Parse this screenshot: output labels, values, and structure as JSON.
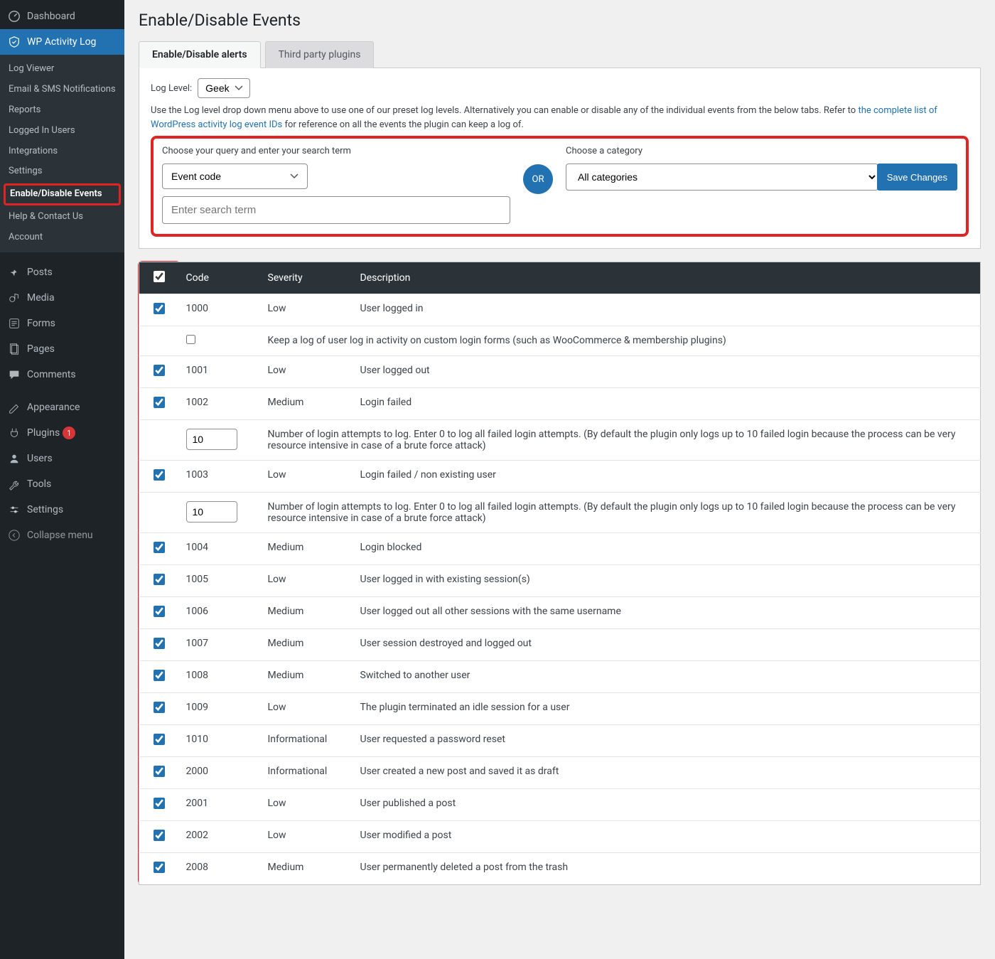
{
  "sidebar": {
    "dashboard": "Dashboard",
    "plugin": "WP Activity Log",
    "sub": {
      "log_viewer": "Log Viewer",
      "email_sms": "Email & SMS Notifications",
      "reports": "Reports",
      "logged_in": "Logged In Users",
      "integrations": "Integrations",
      "settings": "Settings",
      "enable_disable": "Enable/Disable Events",
      "help": "Help & Contact Us",
      "account": "Account"
    },
    "posts": "Posts",
    "media": "Media",
    "forms": "Forms",
    "pages": "Pages",
    "comments": "Comments",
    "appearance": "Appearance",
    "plugins": "Plugins",
    "plugins_badge": "1",
    "users": "Users",
    "tools": "Tools",
    "wp_settings": "Settings",
    "collapse": "Collapse menu"
  },
  "page": {
    "title": "Enable/Disable Events",
    "tabs": {
      "alerts": "Enable/Disable alerts",
      "third_party": "Third party plugins"
    },
    "loglevel_label": "Log Level:",
    "loglevel_value": "Geek",
    "hint_pre": "Use the Log level drop down menu above to use one of our preset log levels. Alternatively you can enable or disable any of the individual events from the below tabs. Refer to ",
    "hint_link": "the complete list of WordPress activity log event IDs",
    "hint_post": " for reference on all the events the plugin can keep a log of.",
    "query_label": "Choose your query and enter your search term",
    "query_select": "Event code",
    "search_placeholder": "Enter search term",
    "or": "OR",
    "cat_label": "Choose a category",
    "cat_value": "All categories",
    "save": "Save Changes"
  },
  "table": {
    "cols": {
      "code": "Code",
      "severity": "Severity",
      "description": "Description"
    },
    "rows": [
      {
        "checked": true,
        "code": "1000",
        "severity": "Low",
        "desc": "User logged in"
      },
      {
        "checked": false,
        "indent": true,
        "code": "",
        "severity": "",
        "desc": "Keep a log of user log in activity on custom login forms (such as WooCommerce & membership plugins)"
      },
      {
        "checked": true,
        "code": "1001",
        "severity": "Low",
        "desc": "User logged out"
      },
      {
        "checked": true,
        "code": "1002",
        "severity": "Medium",
        "desc": "Login failed"
      },
      {
        "num": "10",
        "desc": "Number of login attempts to log. Enter 0 to log all failed login attempts. (By default the plugin only logs up to 10 failed login because the process can be very resource intensive in case of a brute force attack)"
      },
      {
        "checked": true,
        "code": "1003",
        "severity": "Low",
        "desc": "Login failed / non existing user"
      },
      {
        "num": "10",
        "desc": "Number of login attempts to log. Enter 0 to log all failed login attempts. (By default the plugin only logs up to 10 failed login because the process can be very resource intensive in case of a brute force attack)"
      },
      {
        "checked": true,
        "code": "1004",
        "severity": "Medium",
        "desc": "Login blocked"
      },
      {
        "checked": true,
        "code": "1005",
        "severity": "Low",
        "desc": "User logged in with existing session(s)"
      },
      {
        "checked": true,
        "code": "1006",
        "severity": "Medium",
        "desc": "User logged out all other sessions with the same username"
      },
      {
        "checked": true,
        "code": "1007",
        "severity": "Medium",
        "desc": "User session destroyed and logged out"
      },
      {
        "checked": true,
        "code": "1008",
        "severity": "Medium",
        "desc": "Switched to another user"
      },
      {
        "checked": true,
        "code": "1009",
        "severity": "Low",
        "desc": "The plugin terminated an idle session for a user"
      },
      {
        "checked": true,
        "code": "1010",
        "severity": "Informational",
        "desc": "User requested a password reset"
      },
      {
        "checked": true,
        "code": "2000",
        "severity": "Informational",
        "desc": "User created a new post and saved it as draft"
      },
      {
        "checked": true,
        "code": "2001",
        "severity": "Low",
        "desc": "User published a post"
      },
      {
        "checked": true,
        "code": "2002",
        "severity": "Low",
        "desc": "User modified a post"
      },
      {
        "checked": true,
        "code": "2008",
        "severity": "Medium",
        "desc": "User permanently deleted a post from the trash"
      }
    ]
  }
}
